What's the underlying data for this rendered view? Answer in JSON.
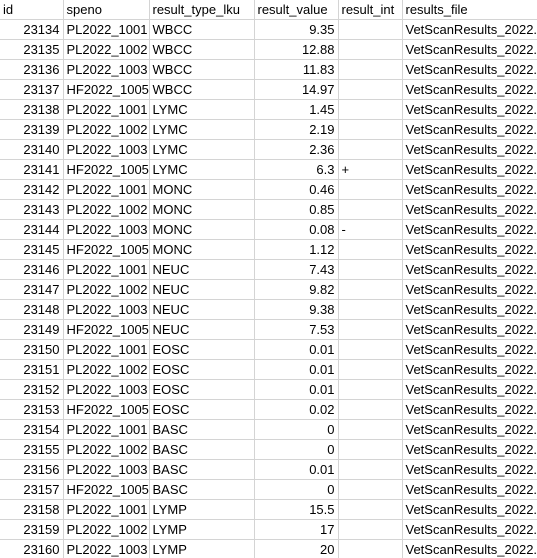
{
  "columns": [
    "id",
    "speno",
    "result_type_lku",
    "result_value",
    "result_int",
    "results_file"
  ],
  "rows": [
    {
      "id": "23134",
      "speno": "PL2022_1001",
      "type": "WBCC",
      "value": "9.35",
      "int": "",
      "file": "VetScanResults_2022."
    },
    {
      "id": "23135",
      "speno": "PL2022_1002",
      "type": "WBCC",
      "value": "12.88",
      "int": "",
      "file": "VetScanResults_2022."
    },
    {
      "id": "23136",
      "speno": "PL2022_1003",
      "type": "WBCC",
      "value": "11.83",
      "int": "",
      "file": "VetScanResults_2022."
    },
    {
      "id": "23137",
      "speno": "HF2022_1005",
      "type": "WBCC",
      "value": "14.97",
      "int": "",
      "file": "VetScanResults_2022."
    },
    {
      "id": "23138",
      "speno": "PL2022_1001",
      "type": "LYMC",
      "value": "1.45",
      "int": "",
      "file": "VetScanResults_2022."
    },
    {
      "id": "23139",
      "speno": "PL2022_1002",
      "type": "LYMC",
      "value": "2.19",
      "int": "",
      "file": "VetScanResults_2022."
    },
    {
      "id": "23140",
      "speno": "PL2022_1003",
      "type": "LYMC",
      "value": "2.36",
      "int": "",
      "file": "VetScanResults_2022."
    },
    {
      "id": "23141",
      "speno": "HF2022_1005",
      "type": "LYMC",
      "value": "6.3",
      "int": "+",
      "file": "VetScanResults_2022."
    },
    {
      "id": "23142",
      "speno": "PL2022_1001",
      "type": "MONC",
      "value": "0.46",
      "int": "",
      "file": "VetScanResults_2022."
    },
    {
      "id": "23143",
      "speno": "PL2022_1002",
      "type": "MONC",
      "value": "0.85",
      "int": "",
      "file": "VetScanResults_2022."
    },
    {
      "id": "23144",
      "speno": "PL2022_1003",
      "type": "MONC",
      "value": "0.08",
      "int": "-",
      "file": "VetScanResults_2022."
    },
    {
      "id": "23145",
      "speno": "HF2022_1005",
      "type": "MONC",
      "value": "1.12",
      "int": "",
      "file": "VetScanResults_2022."
    },
    {
      "id": "23146",
      "speno": "PL2022_1001",
      "type": "NEUC",
      "value": "7.43",
      "int": "",
      "file": "VetScanResults_2022."
    },
    {
      "id": "23147",
      "speno": "PL2022_1002",
      "type": "NEUC",
      "value": "9.82",
      "int": "",
      "file": "VetScanResults_2022."
    },
    {
      "id": "23148",
      "speno": "PL2022_1003",
      "type": "NEUC",
      "value": "9.38",
      "int": "",
      "file": "VetScanResults_2022."
    },
    {
      "id": "23149",
      "speno": "HF2022_1005",
      "type": "NEUC",
      "value": "7.53",
      "int": "",
      "file": "VetScanResults_2022."
    },
    {
      "id": "23150",
      "speno": "PL2022_1001",
      "type": "EOSC",
      "value": "0.01",
      "int": "",
      "file": "VetScanResults_2022."
    },
    {
      "id": "23151",
      "speno": "PL2022_1002",
      "type": "EOSC",
      "value": "0.01",
      "int": "",
      "file": "VetScanResults_2022."
    },
    {
      "id": "23152",
      "speno": "PL2022_1003",
      "type": "EOSC",
      "value": "0.01",
      "int": "",
      "file": "VetScanResults_2022."
    },
    {
      "id": "23153",
      "speno": "HF2022_1005",
      "type": "EOSC",
      "value": "0.02",
      "int": "",
      "file": "VetScanResults_2022."
    },
    {
      "id": "23154",
      "speno": "PL2022_1001",
      "type": "BASC",
      "value": "0",
      "int": "",
      "file": "VetScanResults_2022."
    },
    {
      "id": "23155",
      "speno": "PL2022_1002",
      "type": "BASC",
      "value": "0",
      "int": "",
      "file": "VetScanResults_2022."
    },
    {
      "id": "23156",
      "speno": "PL2022_1003",
      "type": "BASC",
      "value": "0.01",
      "int": "",
      "file": "VetScanResults_2022."
    },
    {
      "id": "23157",
      "speno": "HF2022_1005",
      "type": "BASC",
      "value": "0",
      "int": "",
      "file": "VetScanResults_2022."
    },
    {
      "id": "23158",
      "speno": "PL2022_1001",
      "type": "LYMP",
      "value": "15.5",
      "int": "",
      "file": "VetScanResults_2022."
    },
    {
      "id": "23159",
      "speno": "PL2022_1002",
      "type": "LYMP",
      "value": "17",
      "int": "",
      "file": "VetScanResults_2022."
    },
    {
      "id": "23160",
      "speno": "PL2022_1003",
      "type": "LYMP",
      "value": "20",
      "int": "",
      "file": "VetScanResults_2022."
    }
  ]
}
